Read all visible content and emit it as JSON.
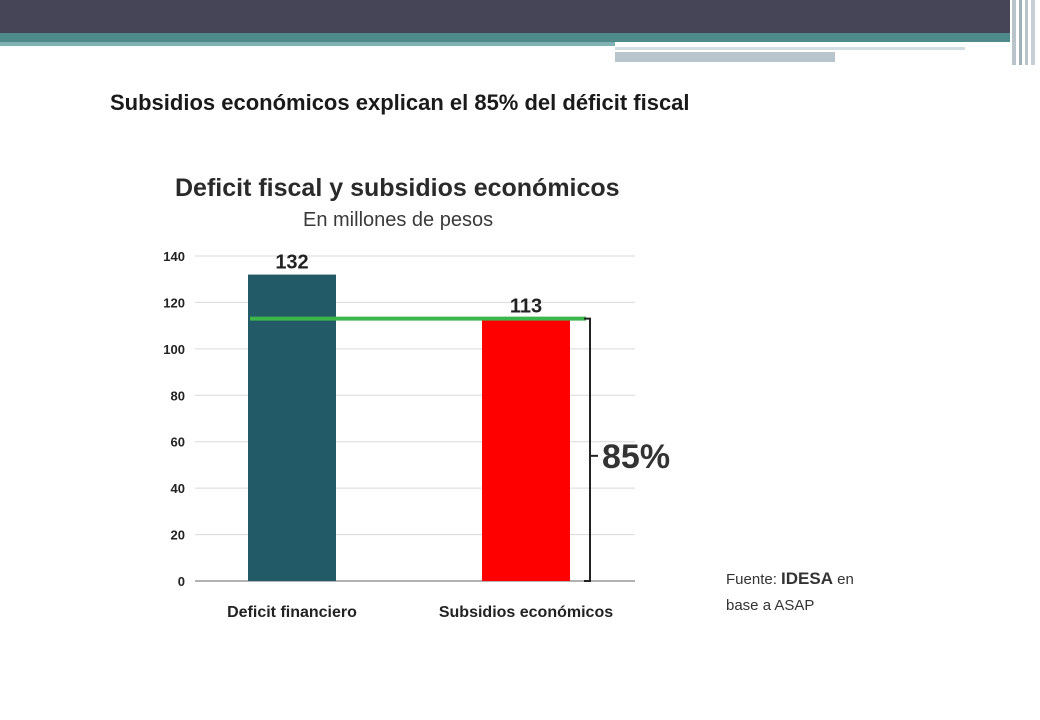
{
  "slide": {
    "title": "Subsidios económicos explican el 85% del déficit fiscal"
  },
  "colors": {
    "header": "#464457",
    "accent_teal": "#4f8a8b",
    "bar_deficit": "#235a68",
    "bar_subsidios": "#ff0000",
    "reference_line": "#3cb54a"
  },
  "chart_data": {
    "type": "bar",
    "title": "Deficit fiscal y subsidios económicos",
    "subtitle": "En millones de pesos",
    "categories": [
      "Deficit financiero",
      "Subsidios económicos"
    ],
    "values": [
      132,
      113
    ],
    "data_labels": [
      "132",
      "113"
    ],
    "ylim": [
      0,
      140
    ],
    "yticks": [
      0,
      20,
      40,
      60,
      80,
      100,
      120,
      140
    ],
    "grid": true,
    "reference_line_value": 113,
    "annotation": "85%",
    "source_prefix": "Fuente: ",
    "source_org": "IDESA",
    "source_suffix": " en",
    "source_line2": "base a ASAP"
  }
}
